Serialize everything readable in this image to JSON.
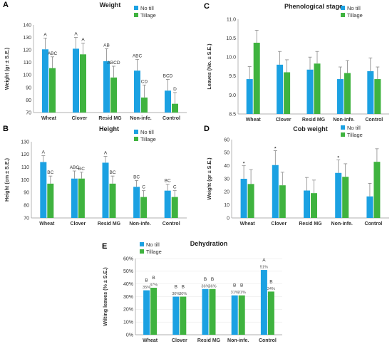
{
  "colors": {
    "no_till": "#1ba1e2",
    "tillage": "#3fb33f"
  },
  "chart_data": [
    {
      "panel": "A",
      "type": "bar",
      "title": "Weight",
      "ylabel": "Weight (gr ± S.E.)",
      "ylim": [
        70,
        140
      ],
      "yticks": [
        70,
        80,
        90,
        100,
        110,
        120,
        130,
        140
      ],
      "categories": [
        "Wheat",
        "Clover",
        "Resid MG",
        "Non-infe.",
        "Control"
      ],
      "series": [
        {
          "name": "No till",
          "values": [
            120.5,
            121,
            111,
            103.5,
            87.5
          ],
          "errors": [
            9,
            9,
            10,
            9,
            9
          ]
        },
        {
          "name": "Tillage",
          "values": [
            105.5,
            116.5,
            98,
            82,
            77
          ],
          "errors": [
            9,
            9,
            9,
            10,
            9
          ]
        }
      ],
      "labels": [
        [
          "A",
          "A",
          "AB",
          "ABC",
          "BCD"
        ],
        [
          "ABC",
          "A",
          "ABCD",
          "CD",
          "D"
        ]
      ],
      "legend_position": "top-right",
      "grid": false
    },
    {
      "panel": "C",
      "type": "bar",
      "title": "Phenological stage",
      "ylabel": "Leaves (No. ± S.E.)",
      "ylim": [
        8.5,
        11
      ],
      "yticks": [
        8.5,
        9.0,
        9.5,
        10.0,
        10.5,
        11.0
      ],
      "tick_decimals": 1,
      "categories": [
        "Wheat",
        "Clover",
        "Resid MG",
        "Non-infe.",
        "Control"
      ],
      "series": [
        {
          "name": "No till",
          "values": [
            9.42,
            9.8,
            9.67,
            9.42,
            9.63
          ],
          "errors": [
            0.33,
            0.35,
            0.33,
            0.32,
            0.35
          ]
        },
        {
          "name": "Tillage",
          "values": [
            10.38,
            9.6,
            9.83,
            9.58,
            9.42
          ],
          "errors": [
            0.33,
            0.33,
            0.32,
            0.33,
            0.32
          ]
        }
      ],
      "legend_position": "top-right",
      "grid": false
    },
    {
      "panel": "B",
      "type": "bar",
      "title": "Height",
      "ylabel": "Height (cm ± S.E.)",
      "ylim": [
        70,
        130
      ],
      "yticks": [
        70,
        80,
        90,
        100,
        110,
        120,
        130
      ],
      "categories": [
        "Wheat",
        "Clover",
        "Resid MG",
        "Non-infe.",
        "Control"
      ],
      "series": [
        {
          "name": "No till",
          "values": [
            114,
            101,
            113.5,
            94.5,
            91.5
          ],
          "errors": [
            5,
            6,
            5,
            5,
            5
          ]
        },
        {
          "name": "Tillage",
          "values": [
            97,
            101,
            97,
            86.5,
            86.5
          ],
          "errors": [
            6,
            5,
            6,
            5,
            5
          ]
        }
      ],
      "labels": [
        [
          "A",
          "ABC",
          "A",
          "BC",
          "BC"
        ],
        [
          "BC",
          "BC",
          "BC",
          "C",
          "C"
        ]
      ],
      "legend_position": "top-right",
      "grid": false
    },
    {
      "panel": "D",
      "type": "bar",
      "title": "Cob weight",
      "ylabel": "Weight (gr ± S.E.)",
      "ylim": [
        0,
        60
      ],
      "yticks": [
        0,
        10,
        20,
        30,
        40,
        50,
        60
      ],
      "categories": [
        "Wheat",
        "Clover",
        "Resid MG",
        "Non-infe.",
        "Control"
      ],
      "series": [
        {
          "name": "No till",
          "values": [
            30,
            40.5,
            21,
            34.5,
            16.5
          ],
          "errors": [
            10,
            11,
            10,
            10,
            10
          ]
        },
        {
          "name": "Tillage",
          "values": [
            26,
            25,
            19,
            31.5,
            43
          ],
          "errors": [
            11,
            10,
            10,
            10,
            10
          ]
        }
      ],
      "markers": [
        "*",
        "*",
        "",
        "*",
        ""
      ],
      "legend_position": "top-right",
      "grid": false
    },
    {
      "panel": "E",
      "type": "bar",
      "title": "Dehydration",
      "ylabel": "Wilting leaves (% ± S.E.)",
      "ylim": [
        0,
        60
      ],
      "yticks": [
        "0%",
        "10%",
        "20%",
        "30%",
        "40%",
        "50%",
        "60%"
      ],
      "categories": [
        "Wheat",
        "Clover",
        "Resid MG",
        "Non-infe.",
        "Control"
      ],
      "series": [
        {
          "name": "No till",
          "values": [
            35,
            30,
            36,
            31,
            51
          ]
        },
        {
          "name": "Tillage",
          "values": [
            37,
            30,
            36,
            31,
            34
          ]
        }
      ],
      "data_labels": [
        [
          "35%",
          "30%",
          "36%",
          "31%",
          "51%"
        ],
        [
          "37%",
          "30%",
          "36%",
          "31%",
          "34%"
        ]
      ],
      "labels": [
        [
          "B",
          "B",
          "B",
          "B",
          "A"
        ],
        [
          "B",
          "B",
          "B",
          "B",
          "B"
        ]
      ],
      "legend_position": "top-left",
      "grid": true
    }
  ]
}
